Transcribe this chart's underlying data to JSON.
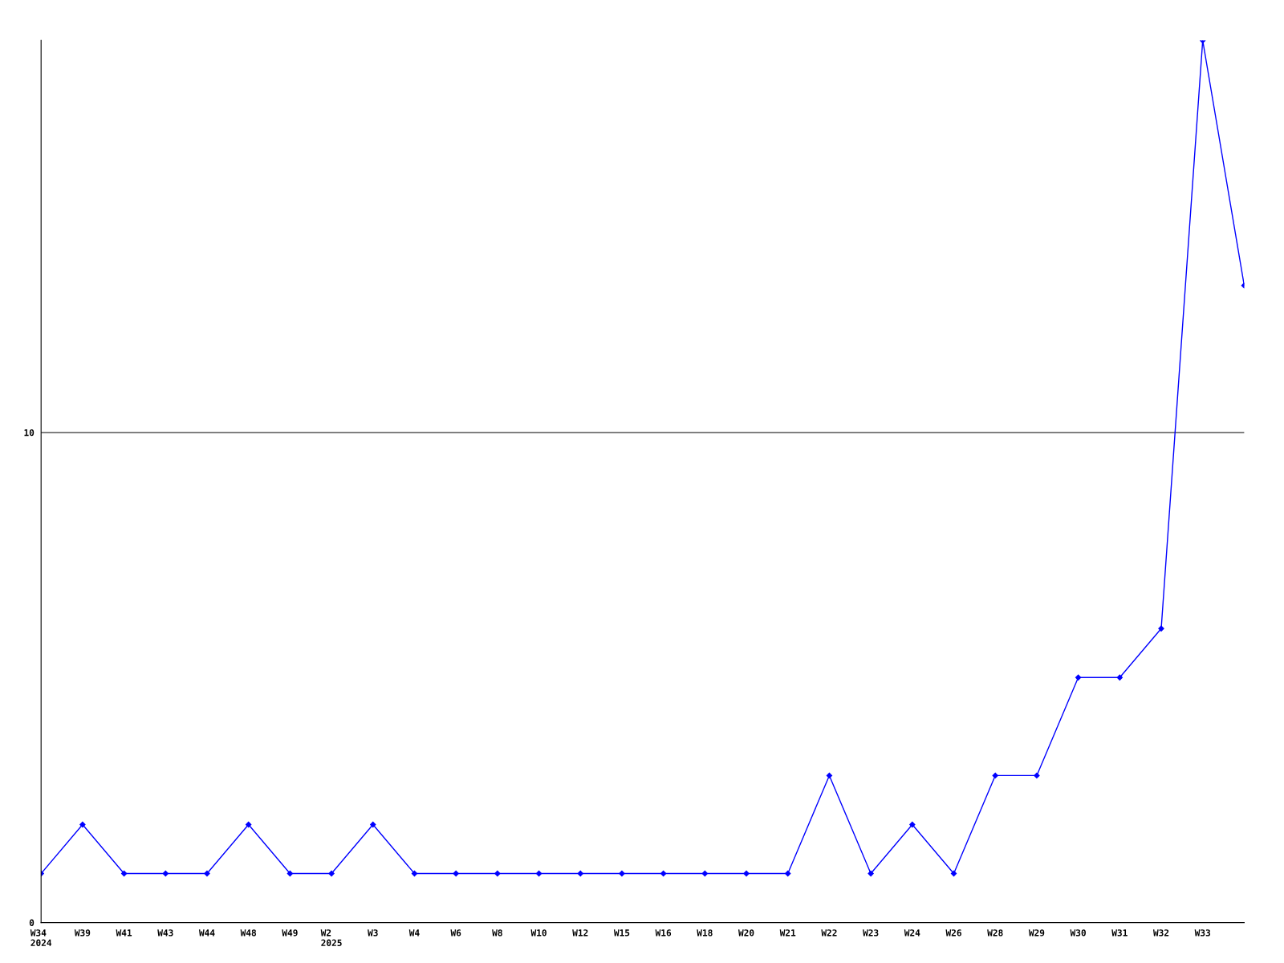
{
  "chart_data": {
    "type": "line",
    "categories": [
      "W34\n2024",
      "W39",
      "W41",
      "W43",
      "W44",
      "W48",
      "W49",
      "W2\n2025",
      "W3",
      "W4",
      "W6",
      "W8",
      "W10",
      "W12",
      "W15",
      "W16",
      "W18",
      "W20",
      "W21",
      "W22",
      "W23",
      "W24",
      "W26",
      "W28",
      "W29",
      "W30",
      "W31",
      "W32",
      "W33",
      null
    ],
    "series": [
      {
        "color": "#0000ff",
        "values": [
          1,
          2,
          1,
          1,
          1,
          2,
          1,
          1,
          2,
          1,
          1,
          1,
          1,
          1,
          1,
          1,
          1,
          1,
          1,
          3,
          1,
          2,
          1,
          3,
          3,
          5,
          5,
          6,
          18,
          13
        ]
      }
    ],
    "ylim": [
      0,
      18
    ],
    "yticks": [
      0,
      10
    ],
    "grid": "y",
    "marker": "diamond",
    "line_style": "solid"
  }
}
